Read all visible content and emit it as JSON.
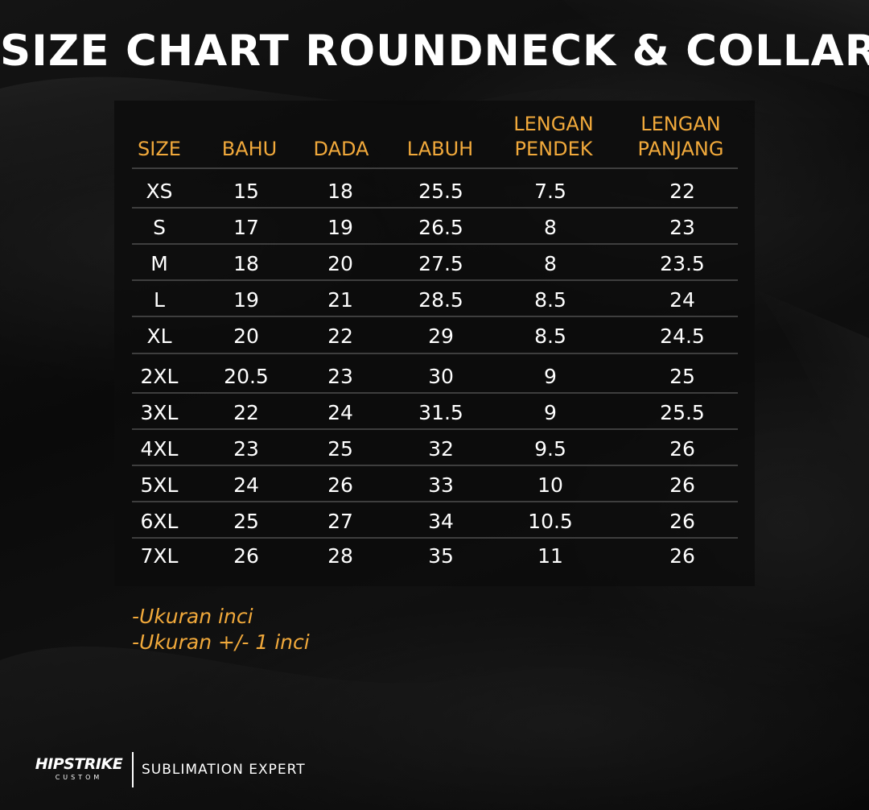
{
  "title": "SIZE CHART ROUNDNECK & COLLAR",
  "table": {
    "headers": [
      {
        "line1": "SIZE",
        "line2": ""
      },
      {
        "line1": "BAHU",
        "line2": ""
      },
      {
        "line1": "DADA",
        "line2": ""
      },
      {
        "line1": "LABUH",
        "line2": ""
      },
      {
        "line1": "LENGAN",
        "line2": "PENDEK"
      },
      {
        "line1": "LENGAN",
        "line2": "PANJANG"
      }
    ],
    "rows": [
      [
        "XS",
        "15",
        "18",
        "25.5",
        "7.5",
        "22"
      ],
      [
        "S",
        "17",
        "19",
        "26.5",
        "8",
        "23"
      ],
      [
        "M",
        "18",
        "20",
        "27.5",
        "8",
        "23.5"
      ],
      [
        "L",
        "19",
        "21",
        "28.5",
        "8.5",
        "24"
      ],
      [
        "XL",
        "20",
        "22",
        "29",
        "8.5",
        "24.5"
      ],
      [
        "2XL",
        "20.5",
        "23",
        "30",
        "9",
        "25"
      ],
      [
        "3XL",
        "22",
        "24",
        "31.5",
        "9",
        "25.5"
      ],
      [
        "4XL",
        "23",
        "25",
        "32",
        "9.5",
        "26"
      ],
      [
        "5XL",
        "24",
        "26",
        "33",
        "10",
        "26"
      ],
      [
        "6XL",
        "25",
        "27",
        "34",
        "10.5",
        "26"
      ],
      [
        "7XL",
        "26",
        "28",
        "35",
        "11",
        "26"
      ]
    ]
  },
  "notes": {
    "line1": "-Ukuran inci",
    "line2": "-Ukuran +/- 1 inci"
  },
  "footer": {
    "logo_main": "HIPSTRIKE",
    "logo_sub": "CUSTOM",
    "tagline": "SUBLIMATION EXPERT"
  },
  "colors": {
    "accent": "#f1a93b",
    "background": "#0d0d0d",
    "text": "#ffffff"
  }
}
